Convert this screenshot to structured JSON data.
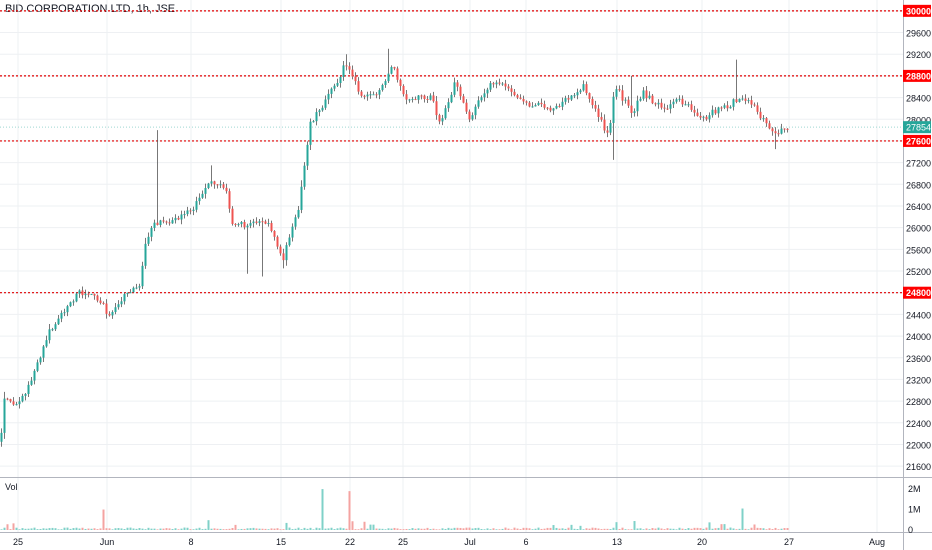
{
  "header": {
    "title": "BID CORPORATION LTD, 1h, JSE"
  },
  "volume_pane": {
    "label": "Vol"
  },
  "colors": {
    "up": "#26a69a",
    "down": "#ef5350",
    "wick": "#555555",
    "level_line": "#e00000",
    "level_badge": "#ff0000",
    "last_price_badge": "#26a69a",
    "grid": "#eef0f3"
  },
  "chart_data": {
    "type": "candlestick",
    "symbol": "BID CORPORATION LTD",
    "interval": "1h",
    "exchange": "JSE",
    "price_axis": {
      "ylim": [
        21400,
        30200
      ],
      "ticks": [
        21600,
        22000,
        22400,
        22800,
        23200,
        23600,
        24000,
        24400,
        24800,
        25200,
        25600,
        26000,
        26400,
        26800,
        27200,
        27600,
        28000,
        28400,
        28800,
        29200,
        29600,
        30000
      ]
    },
    "x_axis": {
      "tick_labels": [
        "25",
        "Jun",
        "8",
        "15",
        "22",
        "25",
        "Jul",
        "6",
        "13",
        "20",
        "27",
        "Aug"
      ]
    },
    "last_price": 27854,
    "horizontal_levels": [
      30000,
      28800,
      27600,
      24800
    ],
    "ohlc": [],
    "anchors": [
      [
        0,
        22050
      ],
      [
        4,
        22900
      ],
      [
        18,
        22700
      ],
      [
        30,
        23150
      ],
      [
        48,
        24050
      ],
      [
        66,
        24550
      ],
      [
        78,
        24800
      ],
      [
        98,
        24700
      ],
      [
        110,
        24350
      ],
      [
        122,
        24700
      ],
      [
        140,
        24950
      ],
      [
        145,
        25750
      ],
      [
        156,
        26100
      ],
      [
        175,
        26150
      ],
      [
        192,
        26350
      ],
      [
        210,
        26850
      ],
      [
        225,
        26700
      ],
      [
        232,
        26100
      ],
      [
        248,
        26050
      ],
      [
        268,
        26100
      ],
      [
        283,
        25450
      ],
      [
        297,
        26250
      ],
      [
        302,
        26900
      ],
      [
        310,
        27900
      ],
      [
        325,
        28350
      ],
      [
        336,
        28650
      ],
      [
        345,
        29050
      ],
      [
        360,
        28450
      ],
      [
        378,
        28450
      ],
      [
        392,
        29050
      ],
      [
        404,
        28400
      ],
      [
        418,
        28400
      ],
      [
        432,
        28400
      ],
      [
        440,
        27850
      ],
      [
        455,
        28750
      ],
      [
        468,
        28000
      ],
      [
        478,
        28300
      ],
      [
        495,
        28750
      ],
      [
        510,
        28550
      ],
      [
        525,
        28300
      ],
      [
        540,
        28250
      ],
      [
        555,
        28200
      ],
      [
        568,
        28400
      ],
      [
        583,
        28600
      ],
      [
        595,
        28150
      ],
      [
        603,
        27900
      ],
      [
        608,
        27650
      ],
      [
        614,
        28600
      ],
      [
        622,
        28400
      ],
      [
        632,
        28100
      ],
      [
        642,
        28500
      ],
      [
        652,
        28350
      ],
      [
        662,
        28200
      ],
      [
        672,
        28300
      ],
      [
        680,
        28350
      ],
      [
        692,
        28150
      ],
      [
        702,
        28000
      ],
      [
        718,
        28200
      ],
      [
        728,
        28250
      ],
      [
        740,
        28400
      ],
      [
        752,
        28300
      ],
      [
        760,
        28050
      ],
      [
        768,
        27900
      ],
      [
        775,
        27700
      ],
      [
        782,
        27900
      ],
      [
        788,
        27850
      ]
    ],
    "volume": {
      "label": "Vol",
      "ticks": [
        0,
        1000000,
        2000000
      ],
      "tick_labels": [
        "0",
        "1M",
        "2M"
      ],
      "ylim": [
        0,
        2200000
      ]
    }
  }
}
